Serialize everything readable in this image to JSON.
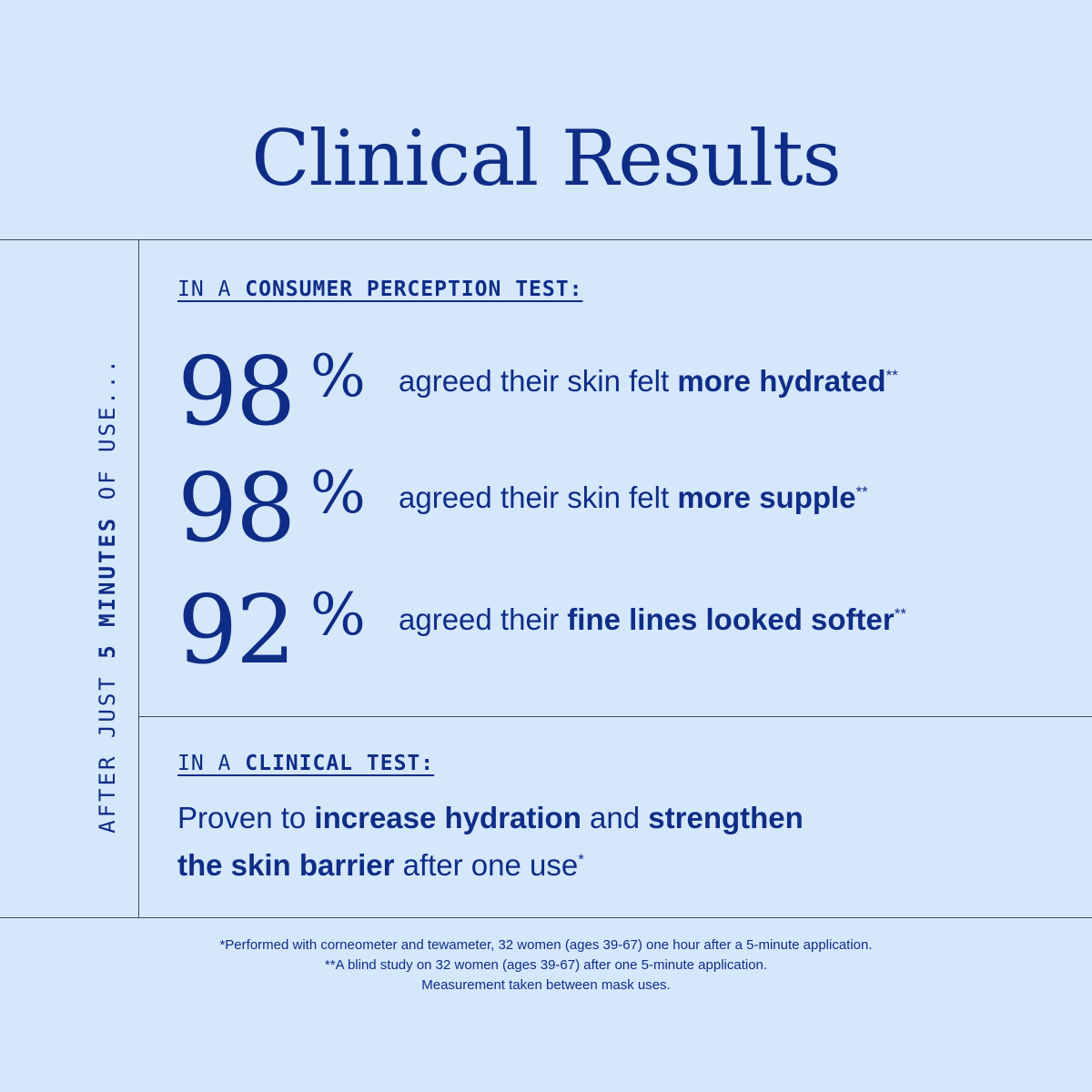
{
  "title": "Clinical Results",
  "side_label": {
    "part1": "AFTER JUST ",
    "part2": "5 MINUTES",
    "part3": " OF USE..."
  },
  "consumer_section": {
    "label_prefix": "IN A ",
    "label_bold": "CONSUMER PERCEPTION TEST:",
    "stats": [
      {
        "value": "98",
        "unit": "%",
        "text": "agreed their skin felt ",
        "bold": "more hydrated",
        "mark": "**"
      },
      {
        "value": "98",
        "unit": "%",
        "text": "agreed their skin felt ",
        "bold": "more supple",
        "mark": "**"
      },
      {
        "value": "92",
        "unit": "%",
        "text": "agreed their ",
        "bold": "fine lines looked softer",
        "mark": "**"
      }
    ]
  },
  "clinical_section": {
    "label_prefix": "IN A ",
    "label_bold": "CLINICAL TEST:",
    "line1_a": "Proven to ",
    "line1_b": "increase hydration",
    "line1_c": " and ",
    "line1_d": "strengthen",
    "line2_a": "the skin barrier",
    "line2_b": " after one use",
    "mark": "*"
  },
  "footnotes": [
    "*Performed with corneometer and tewameter, 32 women (ages 39-67) one hour after a 5-minute application.",
    "**A blind study on 32 women (ages 39-67) after one 5-minute application.",
    "Measurement taken between mask uses."
  ]
}
